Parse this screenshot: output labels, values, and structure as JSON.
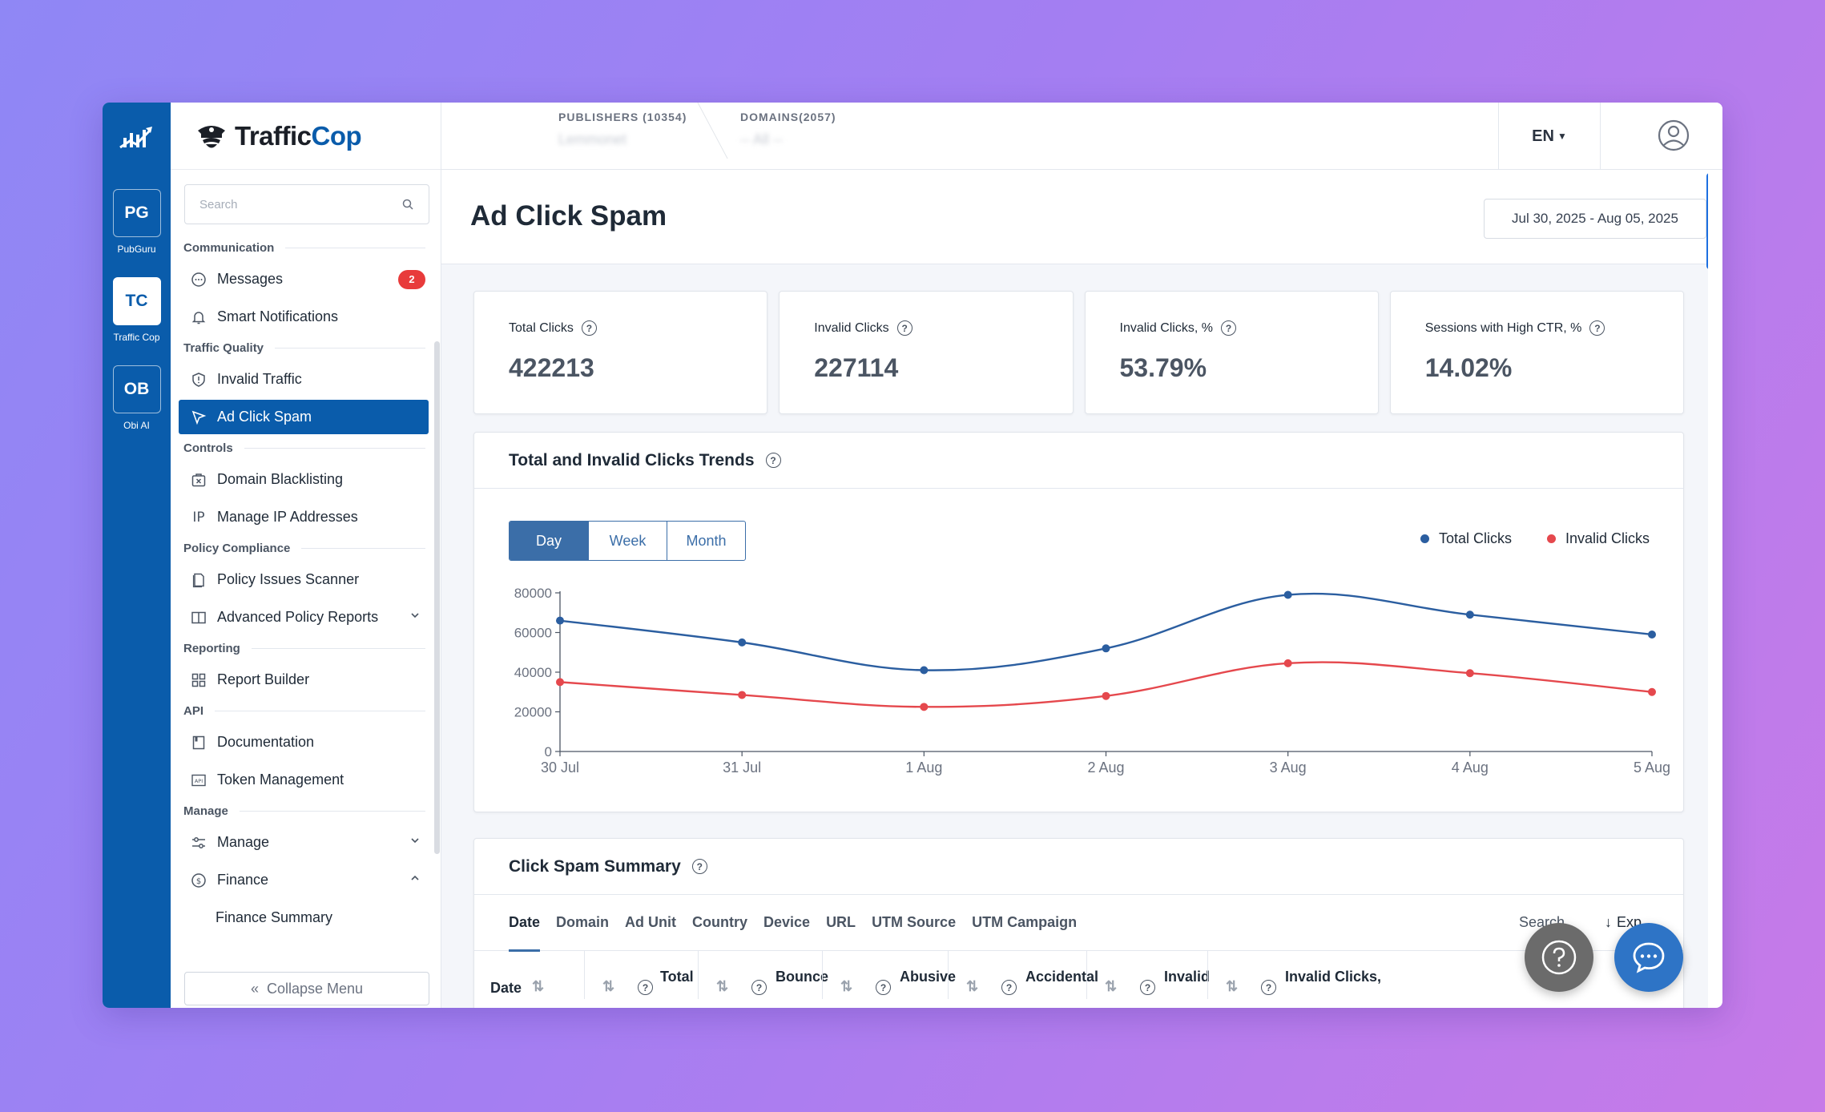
{
  "rail": {
    "apps": [
      {
        "initials": "PG",
        "label": "PubGuru"
      },
      {
        "initials": "TC",
        "label": "Traffic Cop"
      },
      {
        "initials": "OB",
        "label": "Obi AI"
      }
    ]
  },
  "brand": {
    "name_part1": "Traffic",
    "name_part2": "Cop"
  },
  "sidebar": {
    "search_placeholder": "Search",
    "sections": {
      "communication": "Communication",
      "traffic_quality": "Traffic Quality",
      "controls": "Controls",
      "policy": "Policy Compliance",
      "reporting": "Reporting",
      "api": "API",
      "manage": "Manage"
    },
    "items": {
      "messages": "Messages",
      "messages_badge": "2",
      "smart_notifications": "Smart Notifications",
      "invalid_traffic": "Invalid Traffic",
      "ad_click_spam": "Ad Click Spam",
      "domain_blacklisting": "Domain Blacklisting",
      "manage_ip": "Manage IP Addresses",
      "policy_scanner": "Policy Issues Scanner",
      "advanced_policy": "Advanced Policy Reports",
      "report_builder": "Report Builder",
      "documentation": "Documentation",
      "token_management": "Token Management",
      "manage": "Manage",
      "finance": "Finance",
      "finance_summary": "Finance Summary"
    },
    "collapse": "Collapse Menu"
  },
  "topbar": {
    "publishers_label": "PUBLISHERS (10354)",
    "publishers_value": "Lemmonet",
    "domains_label": "DOMAINS(2057)",
    "domains_value": "-- All --",
    "language": "EN"
  },
  "page": {
    "title": "Ad Click Spam",
    "date_range": "Jul 30, 2025 - Aug 05, 2025"
  },
  "kpis": [
    {
      "label": "Total Clicks",
      "value": "422213"
    },
    {
      "label": "Invalid Clicks",
      "value": "227114"
    },
    {
      "label": "Invalid Clicks, %",
      "value": "53.79%"
    },
    {
      "label": "Sessions with High CTR, %",
      "value": "14.02%"
    }
  ],
  "trend_card": {
    "title": "Total and Invalid Clicks Trends",
    "periods": [
      "Day",
      "Week",
      "Month"
    ]
  },
  "chart_data": {
    "type": "line",
    "categories": [
      "30 Jul",
      "31 Jul",
      "1 Aug",
      "2 Aug",
      "3 Aug",
      "4 Aug",
      "5 Aug"
    ],
    "series": [
      {
        "name": "Total Clicks",
        "color": "#2b5ea0",
        "values": [
          66000,
          55000,
          41000,
          52000,
          79000,
          69000,
          59000
        ]
      },
      {
        "name": "Invalid Clicks",
        "color": "#e5484d",
        "values": [
          35000,
          28500,
          22500,
          28000,
          44500,
          39500,
          30000
        ]
      }
    ],
    "yticks": [
      0,
      20000,
      40000,
      60000,
      80000
    ],
    "ylim": [
      0,
      80000
    ],
    "legend": "top-right"
  },
  "summary_card": {
    "title": "Click Spam Summary",
    "tabs": [
      "Date",
      "Domain",
      "Ad Unit",
      "Country",
      "Device",
      "URL",
      "UTM Source",
      "UTM Campaign"
    ],
    "search_label": "Search",
    "export_label": "Exp",
    "columns": [
      "Date",
      "Total",
      "Bounce",
      "Abusive",
      "Accidental",
      "Invalid",
      "Invalid Clicks,"
    ]
  }
}
